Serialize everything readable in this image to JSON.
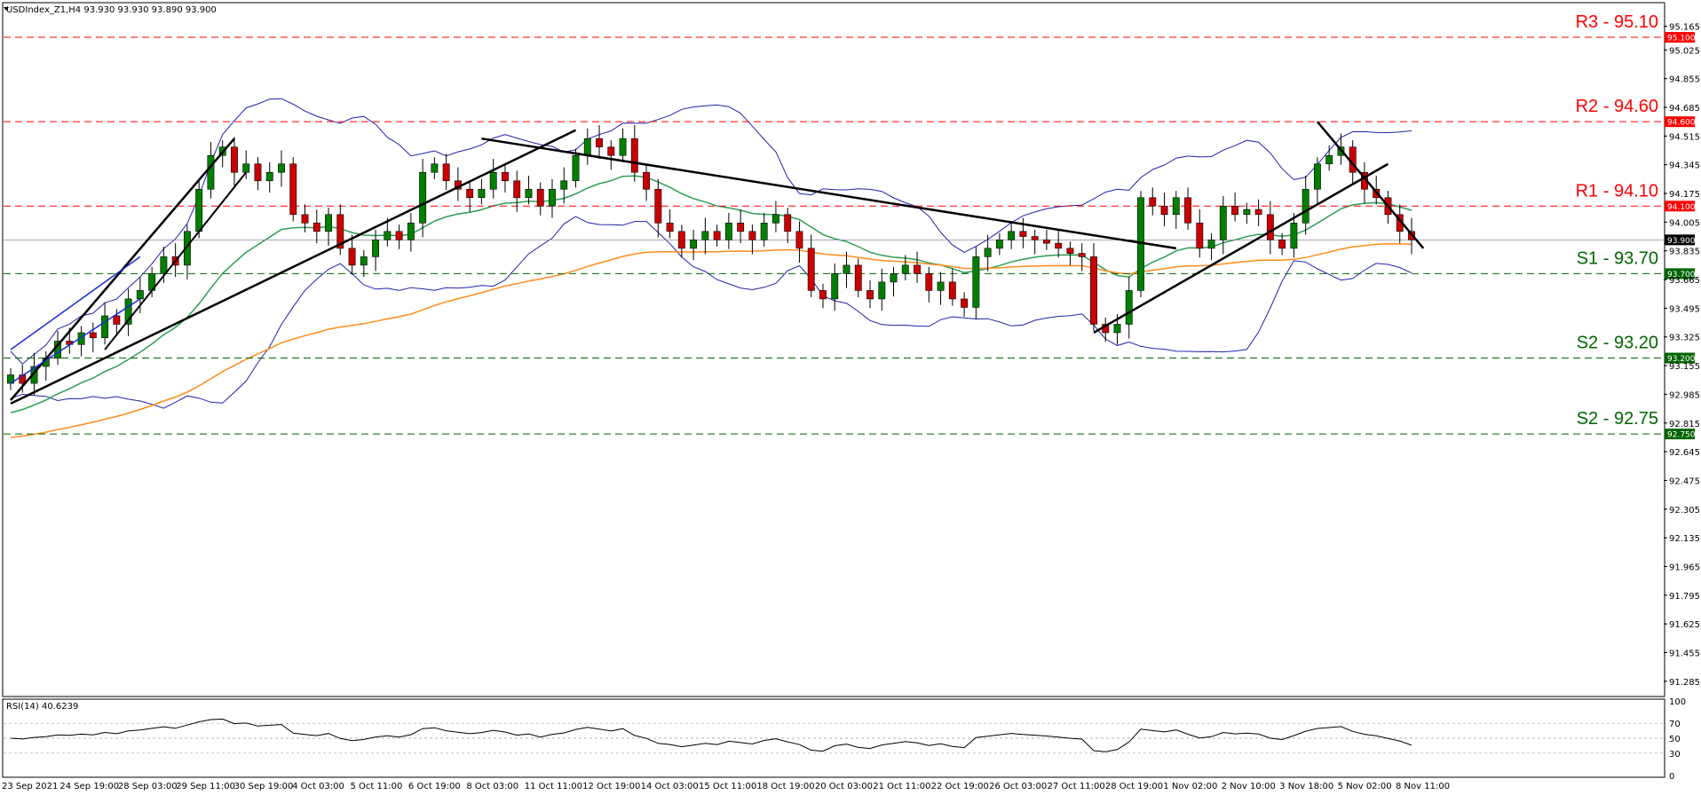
{
  "header": {
    "symbol_line": "USDIndex_Z1,H4  93.930 93.930 93.890 93.900",
    "rsi_label": "RSI(14) 40.6239"
  },
  "colors": {
    "resistance": "#ff0000",
    "support": "#006400",
    "candle_up": "#008000",
    "candle_down": "#cc0000",
    "bollinger": "#2222aa",
    "ma_green": "#2e9e55",
    "ma_orange": "#ff8c1a",
    "trendline": "#000000",
    "channel": "#1a2ad6"
  },
  "chart_data": {
    "type": "candlestick",
    "instrument": "USDIndex_Z1",
    "timeframe": "H4",
    "last_price": 93.9,
    "ylim": [
      91.2,
      95.3
    ],
    "y_ticks": [
      "95.165",
      "95.025",
      "94.855",
      "94.685",
      "94.515",
      "94.345",
      "94.175",
      "94.005",
      "93.835",
      "93.665",
      "93.495",
      "93.325",
      "93.155",
      "92.985",
      "92.815",
      "92.645",
      "92.475",
      "92.305",
      "92.135",
      "91.965",
      "91.795",
      "91.625",
      "91.455",
      "91.285"
    ],
    "x_ticks": [
      "23 Sep 2021",
      "24 Sep 19:00",
      "28 Sep 03:00",
      "29 Sep 11:00",
      "30 Sep 19:00",
      "4 Oct 03:00",
      "5 Oct 11:00",
      "6 Oct 19:00",
      "8 Oct 03:00",
      "11 Oct 11:00",
      "12 Oct 19:00",
      "14 Oct 03:00",
      "15 Oct 11:00",
      "18 Oct 19:00",
      "20 Oct 03:00",
      "21 Oct 11:00",
      "22 Oct 19:00",
      "26 Oct 03:00",
      "27 Oct 11:00",
      "28 Oct 19:00",
      "1 Nov 02:00",
      "2 Nov 10:00",
      "3 Nov 18:00",
      "5 Nov 02:00",
      "8 Nov 11:00"
    ],
    "levels": [
      {
        "label": "R3 - 95.10",
        "value": 95.1,
        "badge": "95.100",
        "kind": "resistance"
      },
      {
        "label": "R2 - 94.60",
        "value": 94.6,
        "badge": "94.600",
        "kind": "resistance"
      },
      {
        "label": "R1 - 94.10",
        "value": 94.1,
        "badge": "94.100",
        "kind": "resistance"
      },
      {
        "label": "S1 - 93.70",
        "value": 93.7,
        "badge": "93.700",
        "kind": "support"
      },
      {
        "label": "S2 - 93.20",
        "value": 93.2,
        "badge": "93.200",
        "kind": "support"
      },
      {
        "label": "S2 - 92.75",
        "value": 92.75,
        "badge": "92.750",
        "kind": "support"
      }
    ],
    "price_badge": "93.900",
    "closes": [
      93.1,
      93.05,
      93.15,
      93.2,
      93.3,
      93.28,
      93.35,
      93.32,
      93.45,
      93.4,
      93.55,
      93.6,
      93.7,
      93.8,
      93.75,
      93.95,
      94.2,
      94.4,
      94.45,
      94.3,
      94.35,
      94.25,
      94.3,
      94.35,
      94.05,
      94.0,
      93.95,
      94.05,
      93.85,
      93.75,
      93.8,
      93.9,
      93.95,
      93.9,
      94.0,
      94.3,
      94.35,
      94.25,
      94.2,
      94.15,
      94.2,
      94.3,
      94.25,
      94.15,
      94.2,
      94.1,
      94.2,
      94.25,
      94.4,
      94.5,
      94.45,
      94.4,
      94.5,
      94.3,
      94.2,
      94.0,
      93.95,
      93.85,
      93.9,
      93.95,
      93.9,
      94.0,
      93.95,
      93.9,
      94.0,
      94.05,
      93.95,
      93.85,
      93.6,
      93.55,
      93.7,
      93.75,
      93.6,
      93.55,
      93.65,
      93.7,
      93.75,
      93.7,
      93.6,
      93.65,
      93.55,
      93.5,
      93.8,
      93.85,
      93.9,
      93.95,
      93.92,
      93.9,
      93.88,
      93.85,
      93.82,
      93.8,
      93.4,
      93.35,
      93.4,
      93.6,
      94.15,
      94.1,
      94.05,
      94.15,
      94.0,
      93.85,
      93.9,
      94.1,
      94.05,
      94.08,
      94.05,
      93.9,
      93.85,
      94.0,
      94.2,
      94.35,
      94.4,
      94.45,
      94.3,
      94.2,
      94.15,
      94.05,
      93.95,
      93.9
    ],
    "rsi": {
      "label": "RSI(14)",
      "value": 40.6239,
      "ylim": [
        0,
        100
      ],
      "ticks": [
        "100",
        "70",
        "50",
        "30",
        "0"
      ]
    }
  }
}
